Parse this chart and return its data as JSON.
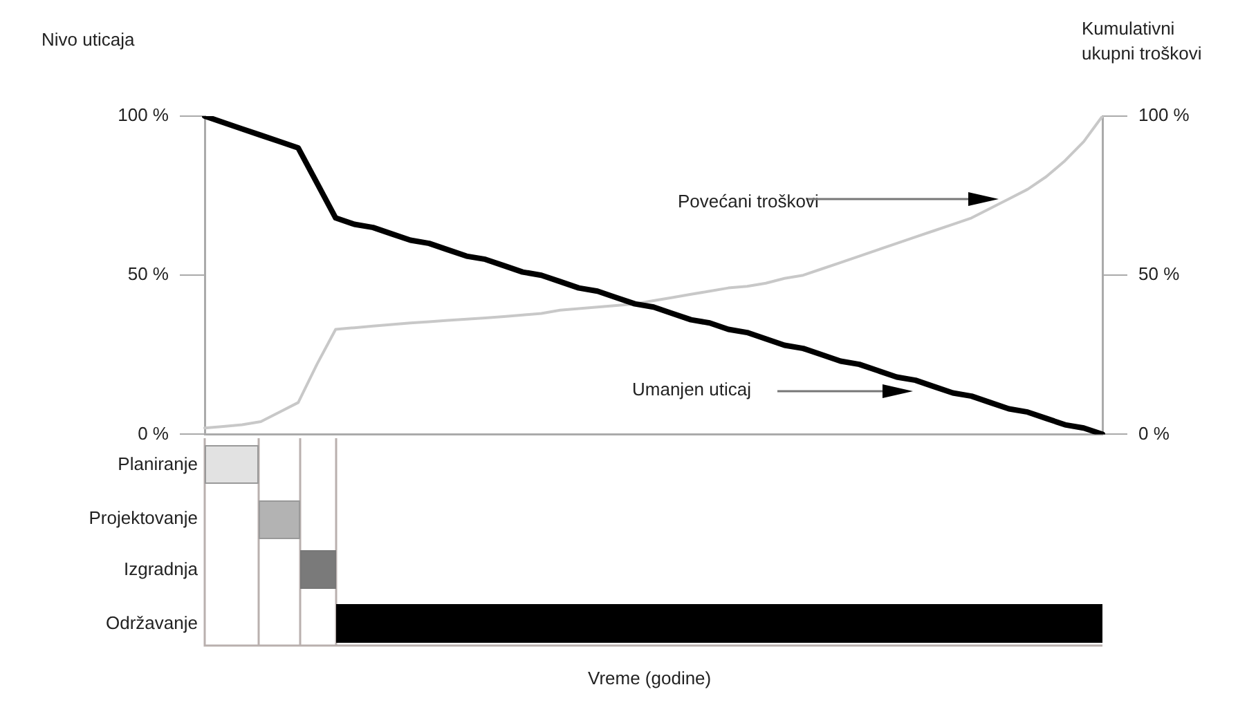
{
  "chart_data": {
    "type": "line",
    "ylabel": "Nivo uticaja",
    "y2label": "Kumulativni ukupni troškovi",
    "categories": [
      null,
      null,
      null,
      null,
      null,
      null,
      null,
      null,
      null,
      null,
      null,
      null,
      null,
      null,
      null,
      null,
      null,
      null,
      null,
      null,
      null,
      null,
      null,
      null,
      null,
      null,
      null,
      null,
      null,
      null,
      null,
      null,
      null,
      null,
      null,
      null,
      null,
      null,
      null,
      null,
      null,
      null,
      null,
      null,
      null,
      null,
      null,
      null,
      null
    ],
    "series": [
      {
        "color": "#000000",
        "values": [
          100,
          98,
          96,
          94,
          92,
          90,
          79,
          68,
          66,
          65,
          63,
          61,
          60,
          58,
          56,
          55,
          53,
          51,
          50,
          48,
          46,
          45,
          43,
          41,
          40,
          38,
          36,
          35,
          33,
          32,
          30,
          28,
          27,
          25,
          23,
          22,
          20,
          18,
          17,
          15,
          13,
          12,
          10,
          8,
          7,
          5,
          3,
          2,
          0
        ]
      },
      {
        "color": "#c8c8c8",
        "values": [
          2,
          2.5,
          3,
          4,
          7,
          10,
          22,
          33,
          33.5,
          34,
          34.5,
          35,
          35.4,
          35.8,
          36.2,
          36.6,
          37,
          37.5,
          38,
          39,
          39.5,
          40,
          40.5,
          41,
          42,
          43,
          44,
          45,
          46,
          46.5,
          47.5,
          49,
          50,
          52,
          54,
          56,
          58,
          60,
          62,
          64,
          66,
          68,
          71,
          74,
          77,
          81,
          86,
          92,
          100
        ]
      }
    ],
    "ylim": [
      0,
      100
    ],
    "yticks": [
      {
        "value": 0,
        "label": "0 %"
      },
      {
        "value": 50,
        "label": "50 %"
      },
      {
        "value": 100,
        "label": "100 %"
      }
    ],
    "y2lim": [
      0,
      100
    ],
    "y2ticks": [
      {
        "value": 0,
        "label": "0 %"
      },
      {
        "value": 50,
        "label": "50 %"
      },
      {
        "value": 100,
        "label": "100 %"
      }
    ],
    "annotations": [
      "Povećani troškovi",
      "Umanjen uticaj",
      "Planiranje",
      "Projektovanje",
      "Izgradnja",
      "Održavanje",
      "Vreme (godine)"
    ],
    "marker": "none",
    "line_style": "solid",
    "grid": false,
    "legend": false
  }
}
